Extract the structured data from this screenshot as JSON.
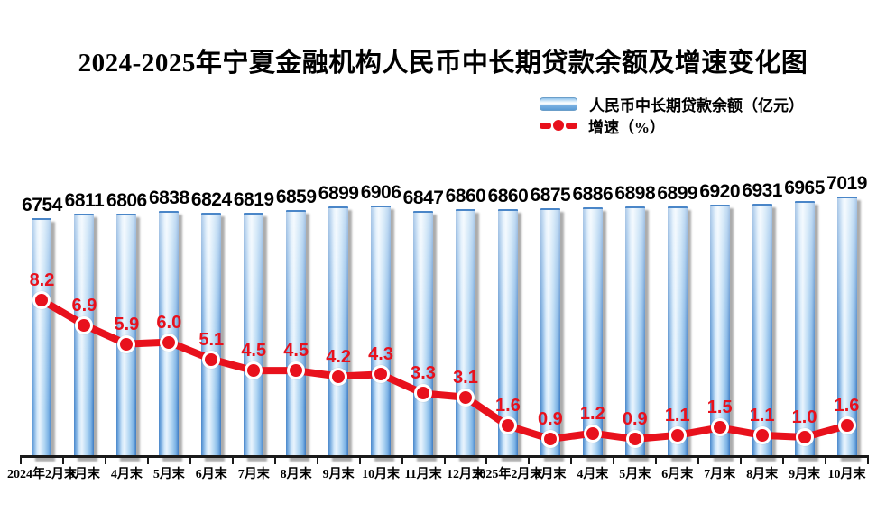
{
  "title": "2024-2025年宁夏金融机构人民币中长期贷款余额及增速变化图",
  "legend": {
    "balance": "人民币中长期贷款余额（亿元）",
    "growth": "增速（%）"
  },
  "colors": {
    "bar_border": "#4a86c8",
    "bar_fill_light": "#e9f4fd",
    "bar_fill": "#aed4f2",
    "line_red": "#e8111c",
    "shadow_gray": "#9e9e9e",
    "axis_black": "#1a1a1a"
  },
  "chart_data": {
    "type": "bar",
    "subtype": "bar-line-combo",
    "title": "2024-2025年宁夏金融机构人民币中长期贷款余额及增速变化图",
    "xlabel": "",
    "ylabel": "",
    "grid": false,
    "legend_position": "top-right",
    "categories": [
      "2024年2月末",
      "3月末",
      "4月末",
      "5月末",
      "6月末",
      "7月末",
      "8月末",
      "9月末",
      "10月末",
      "11月末",
      "12月末",
      "2025年2月末",
      "3月末",
      "4月末",
      "5月末",
      "6月末",
      "7月末",
      "8月末",
      "9月末",
      "10月末"
    ],
    "series": [
      {
        "name": "人民币中长期贷款余额（亿元）",
        "type": "bar",
        "values": [
          6754,
          6811,
          6806,
          6838,
          6824,
          6819,
          6859,
          6899,
          6906,
          6847,
          6860,
          6860,
          6875,
          6886,
          6898,
          6899,
          6920,
          6931,
          6965,
          7019
        ]
      },
      {
        "name": "增速（%）",
        "type": "line",
        "values": [
          8.2,
          6.9,
          5.9,
          6.0,
          5.1,
          4.5,
          4.5,
          4.2,
          4.3,
          3.3,
          3.1,
          1.6,
          0.9,
          1.2,
          0.9,
          1.1,
          1.5,
          1.1,
          1.0,
          1.6
        ]
      }
    ],
    "bar_axis": {
      "min": 3800,
      "max": 7100,
      "visible": false
    },
    "line_axis": {
      "min": 0,
      "max": 14,
      "visible": false
    }
  }
}
